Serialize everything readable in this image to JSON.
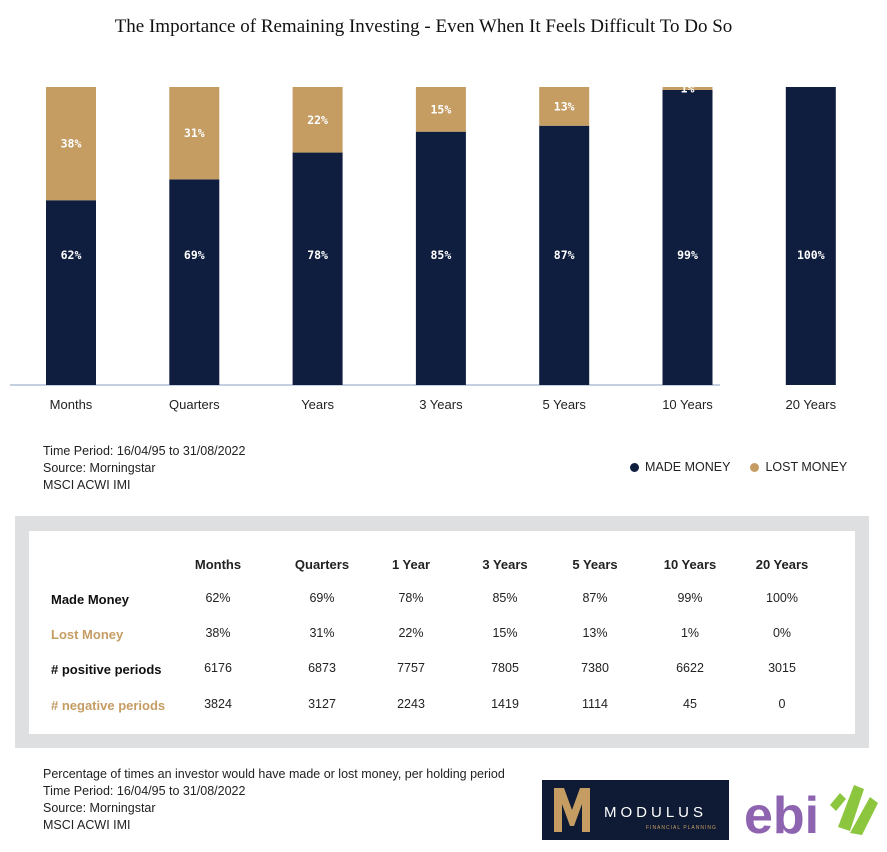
{
  "title": "The Importance of Remaining Investing - Even When It Feels Difficult To Do So",
  "chart_data": {
    "type": "bar",
    "stacked": true,
    "categories": [
      "Months",
      "Quarters",
      "Years",
      "3 Years",
      "5 Years",
      "10 Years",
      "20 Years"
    ],
    "series": [
      {
        "name": "MADE MONEY",
        "values": [
          62,
          69,
          78,
          85,
          87,
          99,
          100
        ],
        "labels": [
          "62%",
          "69%",
          "78%",
          "85%",
          "87%",
          "99%",
          "100%"
        ],
        "color": "#0f1e3f"
      },
      {
        "name": "LOST MONEY",
        "values": [
          38,
          31,
          22,
          15,
          13,
          1,
          0
        ],
        "labels": [
          "38%",
          "31%",
          "22%",
          "15%",
          "13%",
          "1%",
          ""
        ],
        "color": "#c59d63"
      }
    ],
    "ylim": [
      0,
      100
    ],
    "grid": false,
    "legend": "bottom-right"
  },
  "chart_notes": [
    "Time Period: 16/04/95 to 31/08/2022",
    "Source: Morningstar",
    "MSCI ACWI IMI"
  ],
  "legend": {
    "made": "MADE MONEY",
    "lost": "LOST MONEY",
    "made_color": "#0f1e3f",
    "lost_color": "#c59d63"
  },
  "table": {
    "headers": [
      "Months",
      "Quarters",
      "1 Year",
      "3 Years",
      "5 Years",
      "10 Years",
      "20 Years"
    ],
    "rows": [
      {
        "label": "Made Money",
        "color": "#111111",
        "values": [
          "62%",
          "69%",
          "78%",
          "85%",
          "87%",
          "99%",
          "100%"
        ]
      },
      {
        "label": "Lost Money",
        "color": "#c59d63",
        "values": [
          "38%",
          "31%",
          "22%",
          "15%",
          "13%",
          "1%",
          "0%"
        ]
      },
      {
        "label": "#  positive  periods",
        "color": "#111111",
        "values": [
          "6176",
          "6873",
          "7757",
          "7805",
          "7380",
          "6622",
          "3015"
        ]
      },
      {
        "label": "# negative periods",
        "color": "#c59d63",
        "values": [
          "3824",
          "3127",
          "2243",
          "1419",
          "1114",
          "45",
          "0"
        ]
      }
    ]
  },
  "footer_notes": [
    "Percentage of times an investor would have made or lost money, per holding period",
    "Time Period: 16/04/95 to 31/08/2022",
    "Source: Morningstar",
    "MSCI ACWI IMI"
  ],
  "logos": {
    "modulus": "MODULUS",
    "modulus_sub": "FINANCIAL PLANNING",
    "ebi": "ebi"
  }
}
